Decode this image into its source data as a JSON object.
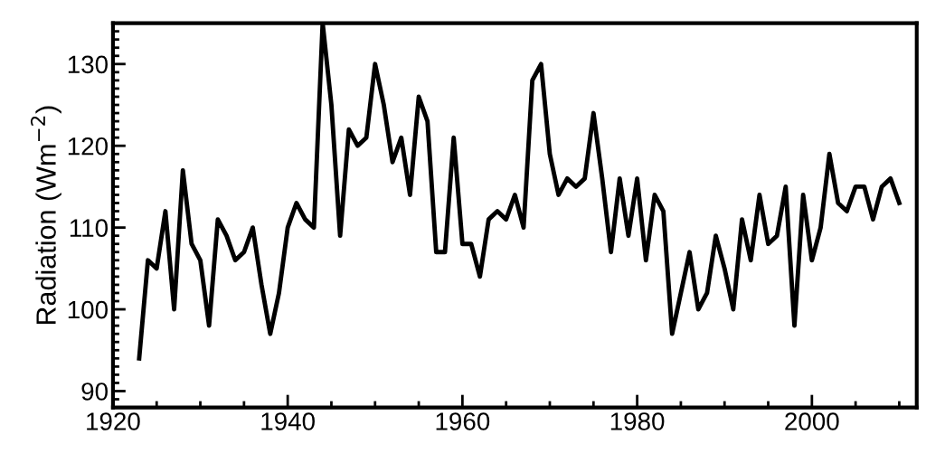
{
  "chart_data": {
    "type": "line",
    "ylabel": "Radiation (Wm$^{−2}$)",
    "x": [
      1923,
      1924,
      1925,
      1926,
      1927,
      1928,
      1929,
      1930,
      1931,
      1932,
      1933,
      1934,
      1935,
      1936,
      1937,
      1938,
      1939,
      1940,
      1941,
      1942,
      1943,
      1944,
      1945,
      1946,
      1947,
      1948,
      1949,
      1950,
      1951,
      1952,
      1953,
      1954,
      1955,
      1956,
      1957,
      1958,
      1959,
      1960,
      1961,
      1962,
      1963,
      1964,
      1965,
      1966,
      1967,
      1968,
      1969,
      1970,
      1971,
      1972,
      1973,
      1974,
      1975,
      1976,
      1977,
      1978,
      1979,
      1980,
      1981,
      1982,
      1983,
      1984,
      1985,
      1986,
      1987,
      1988,
      1989,
      1990,
      1991,
      1992,
      1993,
      1994,
      1995,
      1996,
      1997,
      1998,
      1999,
      2000,
      2001,
      2002,
      2003,
      2004,
      2005,
      2006,
      2007,
      2008,
      2009,
      2010
    ],
    "series": [
      {
        "color": "#000000",
        "values": [
          94,
          106,
          105,
          112,
          100,
          117,
          108,
          106,
          98,
          111,
          109,
          106,
          107,
          110,
          103,
          97,
          102,
          110,
          113,
          111,
          110,
          135,
          125,
          109,
          122,
          120,
          121,
          130,
          125,
          118,
          121,
          114,
          126,
          123,
          107,
          107,
          121,
          108,
          108,
          104,
          111,
          112,
          111,
          114,
          110,
          128,
          130,
          119,
          114,
          116,
          115,
          116,
          124,
          116,
          107,
          116,
          109,
          116,
          106,
          114,
          112,
          97,
          102,
          107,
          100,
          102,
          109,
          105,
          100,
          111,
          106,
          114,
          108,
          109,
          115,
          98,
          114,
          106,
          110,
          119,
          113,
          112,
          115,
          115,
          111,
          115,
          116,
          113
        ]
      }
    ],
    "xlim": [
      1920,
      2012
    ],
    "ylim": [
      88,
      135
    ],
    "xticks": [
      1920,
      1940,
      1960,
      1980,
      2000
    ],
    "yticks": [
      90,
      100,
      110,
      120,
      130
    ],
    "grid": false,
    "legend": false,
    "marker": "none",
    "line_style": "solid"
  }
}
